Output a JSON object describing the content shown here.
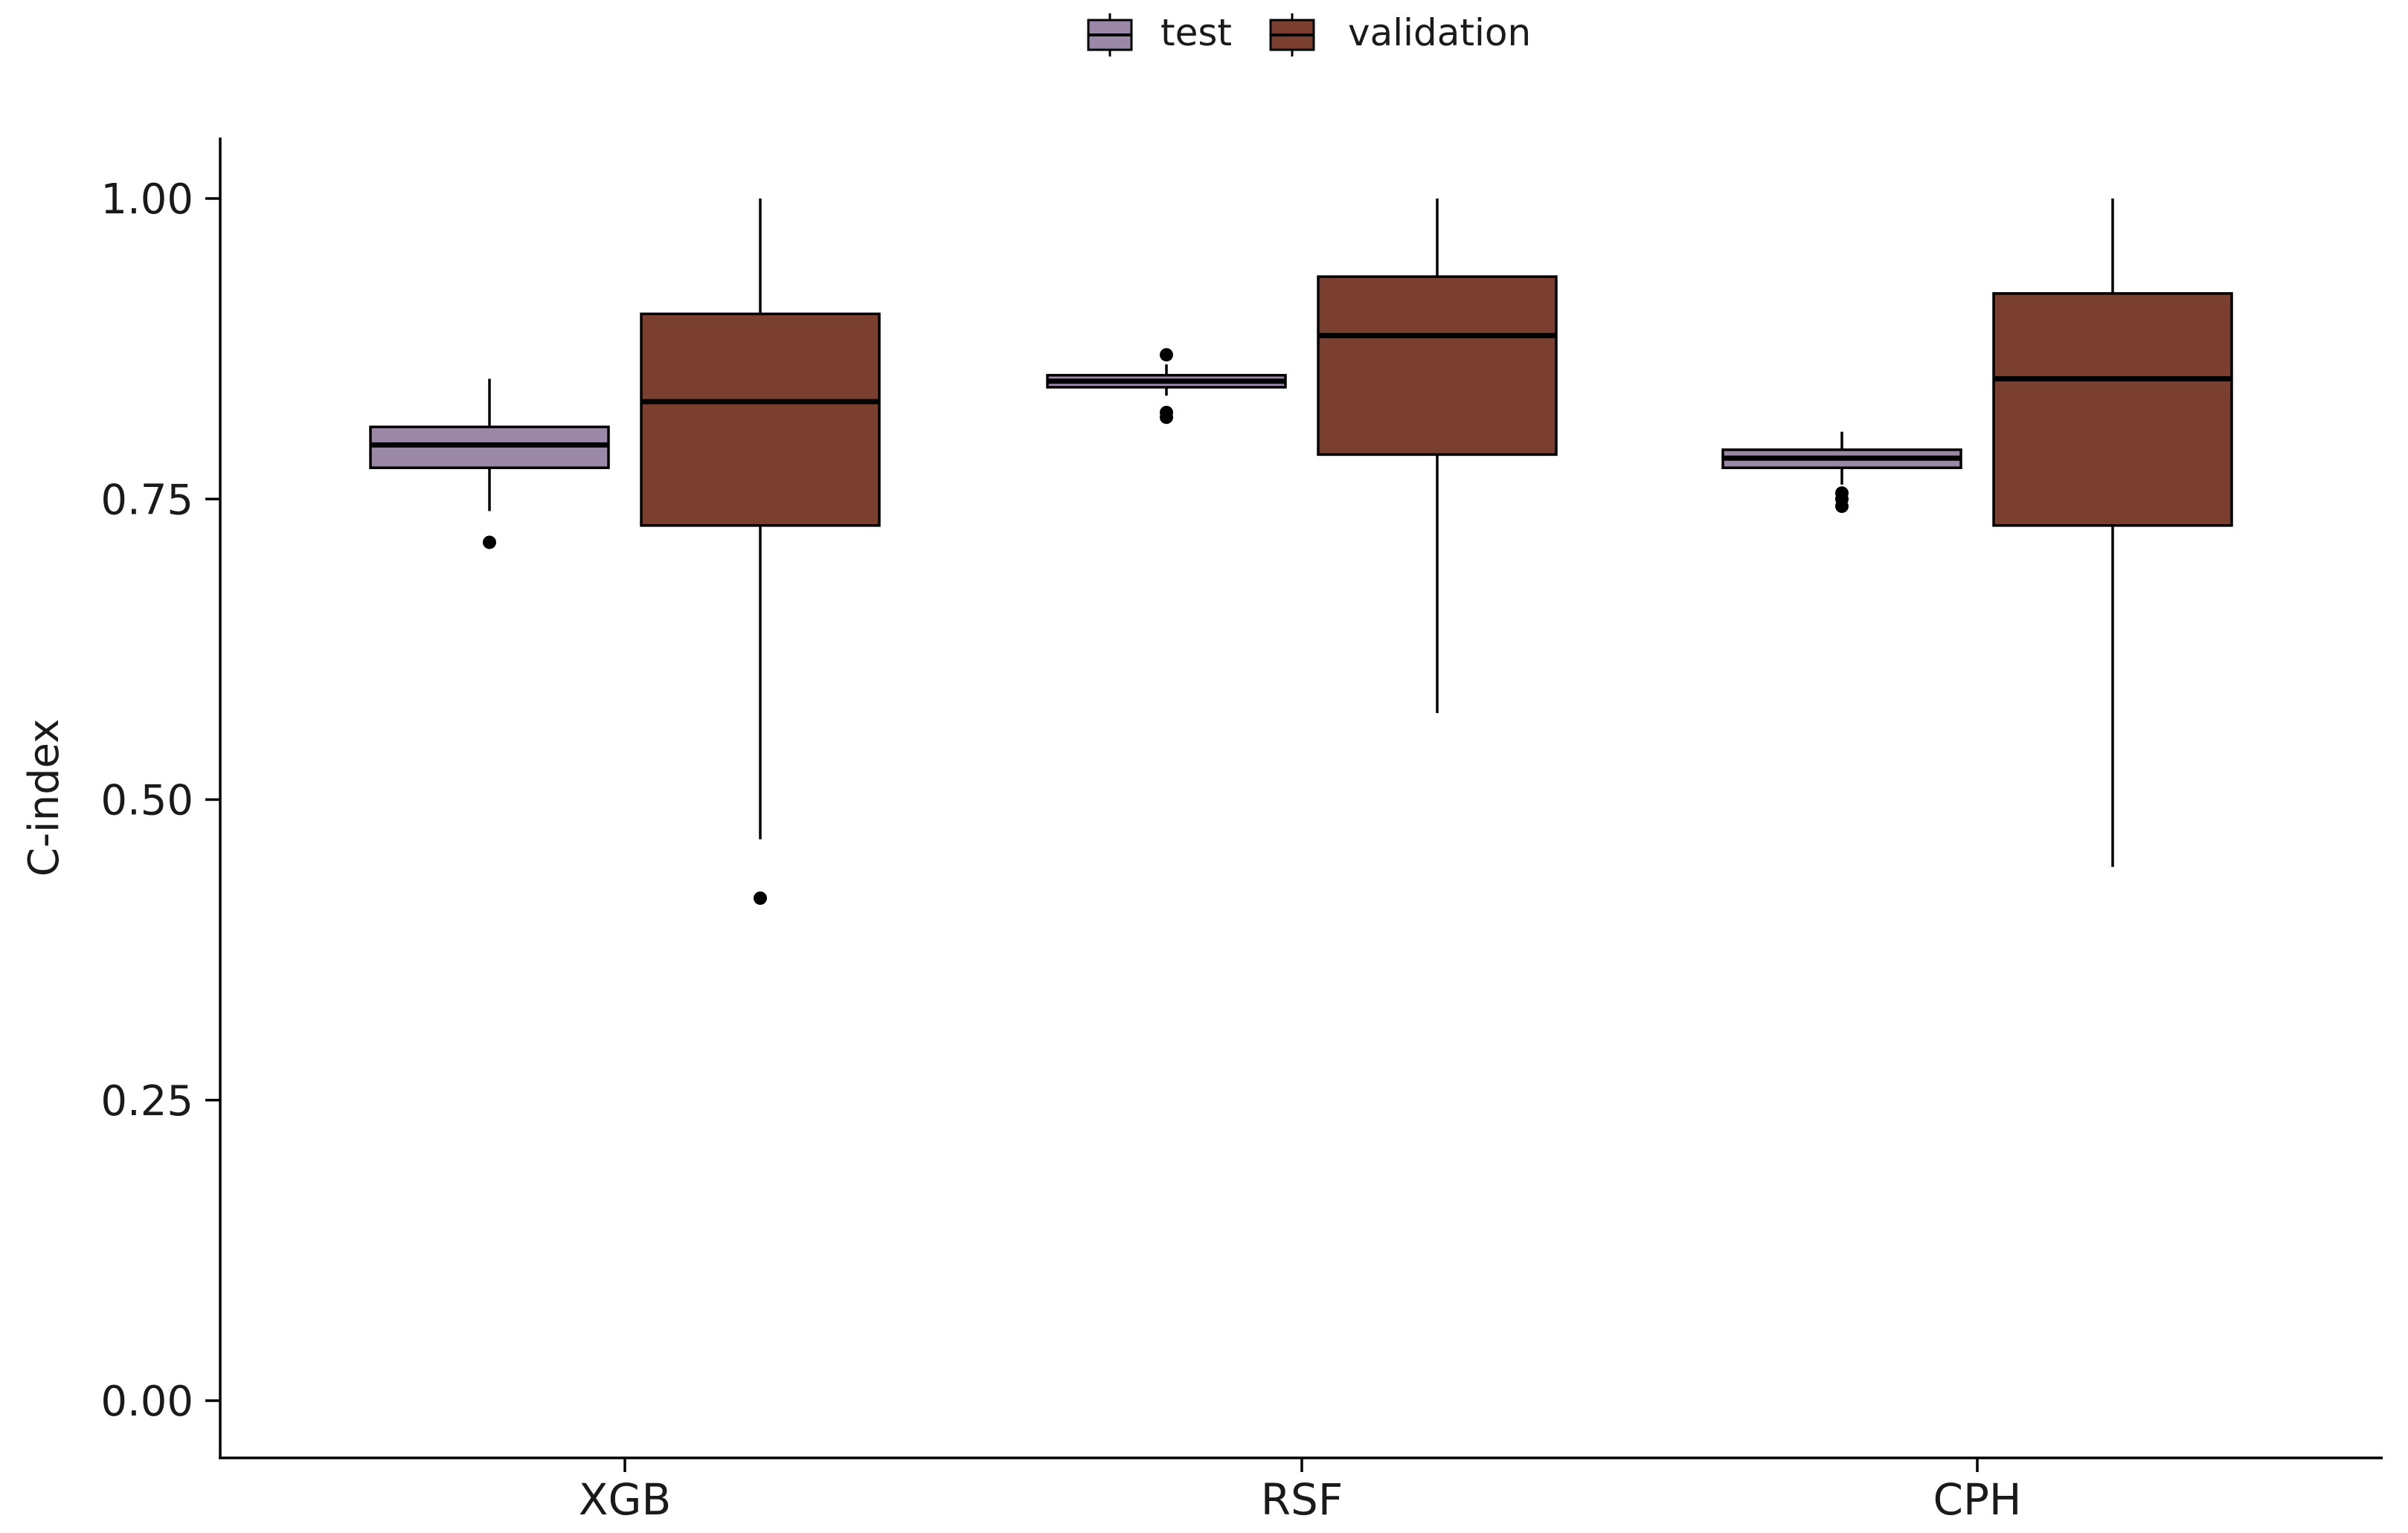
{
  "chart_data": {
    "type": "boxplot",
    "title": "",
    "xlabel": "",
    "ylabel": "C-index",
    "ylim": [
      -0.05,
      1.05
    ],
    "yticks": [
      0.0,
      0.25,
      0.5,
      0.75,
      1.0
    ],
    "ytick_labels": [
      "0.00",
      "0.25",
      "0.50",
      "0.75",
      "1.00"
    ],
    "categories": [
      "XGB",
      "RSF",
      "CPH"
    ],
    "legend": {
      "position": "top-center"
    },
    "series": [
      {
        "name": "test",
        "color": "#9a88a6",
        "boxes": [
          {
            "category": "XGB",
            "whisker_low": 0.74,
            "q1": 0.776,
            "median": 0.795,
            "q3": 0.81,
            "whisker_high": 0.85,
            "outliers": [
              0.714
            ]
          },
          {
            "category": "RSF",
            "whisker_low": 0.836,
            "q1": 0.843,
            "median": 0.848,
            "q3": 0.853,
            "whisker_high": 0.862,
            "outliers": [
              0.87,
              0.822,
              0.818
            ]
          },
          {
            "category": "CPH",
            "whisker_low": 0.762,
            "q1": 0.776,
            "median": 0.784,
            "q3": 0.791,
            "whisker_high": 0.806,
            "outliers": [
              0.755,
              0.75,
              0.744
            ]
          }
        ]
      },
      {
        "name": "validation",
        "color": "#7a3f2e",
        "boxes": [
          {
            "category": "XGB",
            "whisker_low": 0.467,
            "q1": 0.728,
            "median": 0.831,
            "q3": 0.904,
            "whisker_high": 1.0,
            "outliers": [
              0.418
            ]
          },
          {
            "category": "RSF",
            "whisker_low": 0.572,
            "q1": 0.787,
            "median": 0.886,
            "q3": 0.935,
            "whisker_high": 1.0,
            "outliers": []
          },
          {
            "category": "CPH",
            "whisker_low": 0.444,
            "q1": 0.728,
            "median": 0.85,
            "q3": 0.921,
            "whisker_high": 1.0,
            "outliers": []
          }
        ]
      }
    ]
  }
}
